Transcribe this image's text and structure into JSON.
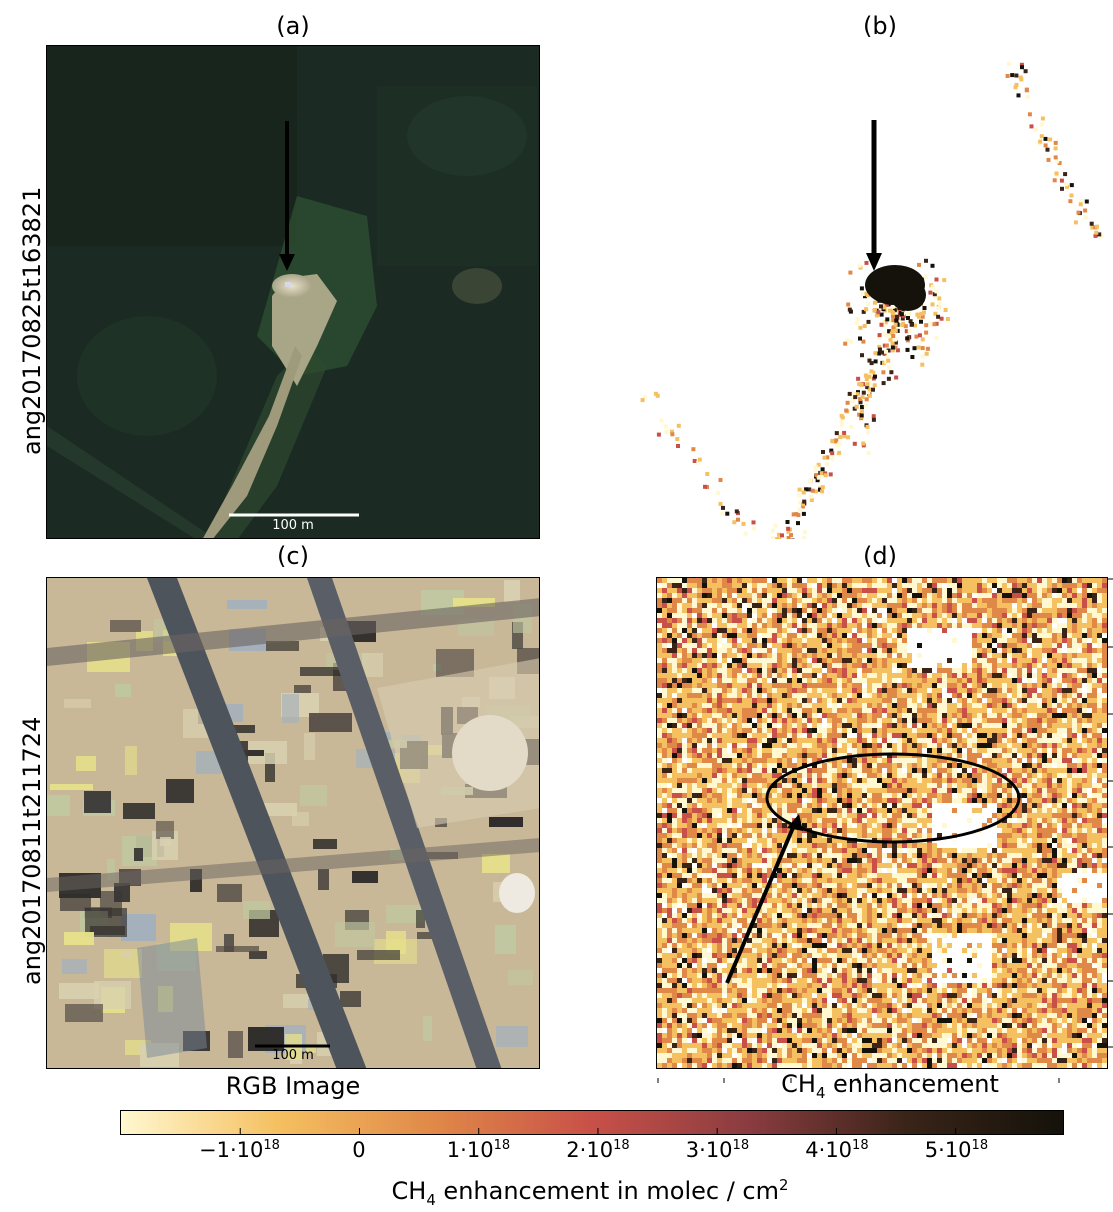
{
  "panels": {
    "a": {
      "label": "(a)",
      "scale_text": "100 m"
    },
    "b": {
      "label": "(b)"
    },
    "c": {
      "label": "(c)",
      "scale_text": "100 m"
    },
    "d": {
      "label": "(d)"
    }
  },
  "rows": [
    {
      "label": "ang20170825t163821"
    },
    {
      "label": "ang20170811t211724"
    }
  ],
  "xlabels": {
    "rgb": "RGB Image",
    "ch4_prefix": "CH",
    "ch4_sub": "4",
    "ch4_suffix": " enhancement"
  },
  "colorbar": {
    "label_prefix": "CH",
    "label_sub": "4",
    "label_mid": " enhancement in molec / cm",
    "label_sup": "2",
    "ticks": [
      {
        "value": -1,
        "mant": "−1·10",
        "exp": "18"
      },
      {
        "value": 0,
        "mant": "0",
        "exp": ""
      },
      {
        "value": 1,
        "mant": "1·10",
        "exp": "18"
      },
      {
        "value": 2,
        "mant": "2·10",
        "exp": "18"
      },
      {
        "value": 3,
        "mant": "3·10",
        "exp": "18"
      },
      {
        "value": 4,
        "mant": "4·10",
        "exp": "18"
      },
      {
        "value": 5,
        "mant": "5·10",
        "exp": "18"
      }
    ],
    "range": [
      -2.0,
      5.9
    ],
    "colors": [
      "#fff8d0",
      "#f5c060",
      "#e08848",
      "#c85048",
      "#8a3c40",
      "#3a2418",
      "#14120a"
    ]
  }
}
